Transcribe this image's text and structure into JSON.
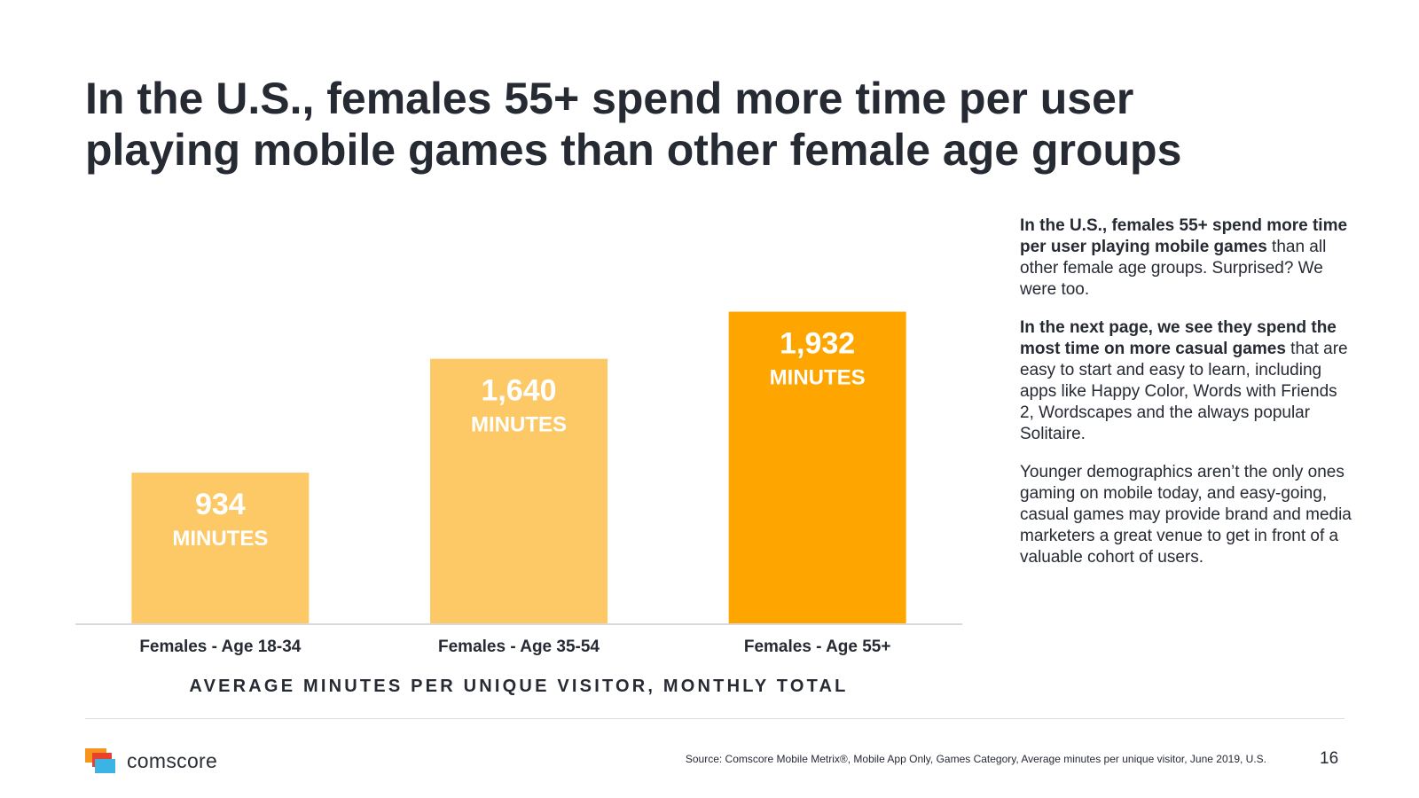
{
  "title": {
    "line1": "In the U.S., females 55+ spend more time per user",
    "line2": "playing mobile games than other female age groups"
  },
  "chart_data": {
    "type": "bar",
    "title": "AVERAGE MINUTES PER UNIQUE VISITOR, MONTHLY TOTAL",
    "categories": [
      "Females - Age 18-34",
      "Females - Age 35-54",
      "Females - Age 55+"
    ],
    "values": [
      934,
      1640,
      1932
    ],
    "value_labels": [
      "934",
      "1,640",
      "1,932"
    ],
    "unit_label": "MINUTES",
    "xlabel": "",
    "ylabel": "",
    "ylim": [
      0,
      2600
    ],
    "grid": false,
    "legend": "none",
    "colors": [
      "#fdc966",
      "#fdc966",
      "#ffa500"
    ]
  },
  "sidebar": {
    "p1_bold": "In the U.S., females 55+ spend more time per user playing mobile games",
    "p1_rest": "than all other female age groups. Surprised? We were too.",
    "p2_bold": "In the next page, we see they spend the most time on more casual games",
    "p2_rest": "that are easy to start and easy to learn, including apps like Happy Color, Words with Friends 2, Wordscapes and the always popular Solitaire.",
    "p3": "Younger demographics aren’t the only ones gaming on mobile today, and easy-going, casual games may provide brand and media marketers a great venue to get in front of a valuable cohort of users."
  },
  "footer": {
    "logo_text": "comscore",
    "source": "Source: Comscore Mobile Metrix®, Mobile App Only, Games Category, Average minutes per unique visitor, June 2019, U.S.",
    "page_number": "16"
  },
  "colors": {
    "text": "#262a33",
    "bar_light": "#fdc966",
    "bar_highlight": "#ffa500",
    "axis": "#d9d9d9",
    "logo_orange": "#f7941d",
    "logo_red": "#e8412c",
    "logo_blue": "#3bb4e5"
  }
}
